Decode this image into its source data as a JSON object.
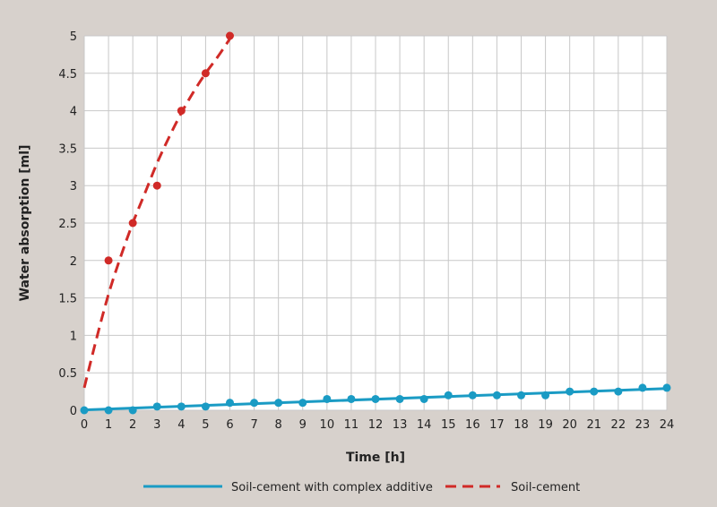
{
  "chart_data": {
    "type": "line",
    "title": "",
    "xlabel": "Time [h]",
    "ylabel": "Water absorption [ml]",
    "xlim": [
      0,
      24
    ],
    "ylim": [
      0,
      5
    ],
    "x_ticks": [
      0,
      1,
      2,
      3,
      4,
      5,
      6,
      7,
      8,
      9,
      10,
      11,
      12,
      13,
      14,
      15,
      16,
      17,
      18,
      19,
      20,
      21,
      22,
      23,
      24
    ],
    "y_ticks": [
      0,
      0.5,
      1,
      1.5,
      2,
      2.5,
      3,
      3.5,
      4,
      4.5,
      5
    ],
    "grid": true,
    "legend_position": "bottom",
    "series": [
      {
        "name": "Soil-cement with complex additive",
        "color": "#1a9bc4",
        "line_style": "solid",
        "x": [
          0,
          1,
          2,
          3,
          4,
          5,
          6,
          7,
          8,
          9,
          10,
          11,
          12,
          13,
          14,
          15,
          16,
          17,
          18,
          19,
          20,
          21,
          22,
          23,
          24
        ],
        "y": [
          0,
          0,
          0,
          0.05,
          0.05,
          0.05,
          0.1,
          0.1,
          0.1,
          0.1,
          0.15,
          0.15,
          0.15,
          0.15,
          0.15,
          0.2,
          0.2,
          0.2,
          0.2,
          0.2,
          0.25,
          0.25,
          0.25,
          0.3,
          0.3
        ],
        "trend_y": [
          0.005,
          0.29
        ]
      },
      {
        "name": "Soil-cement",
        "color": "#d02a27",
        "line_style": "dashed",
        "x": [
          1,
          2,
          3,
          4,
          5,
          6
        ],
        "y": [
          2,
          2.5,
          3,
          4,
          4.5,
          5
        ],
        "trend_x": [
          0,
          0.5,
          1,
          1.5,
          2,
          2.5,
          3,
          3.5,
          4,
          4.5,
          5,
          5.5,
          6
        ],
        "trend_y": [
          0.3,
          0.95,
          1.55,
          2.05,
          2.5,
          2.9,
          3.3,
          3.65,
          3.97,
          4.25,
          4.5,
          4.72,
          4.96
        ]
      }
    ]
  }
}
